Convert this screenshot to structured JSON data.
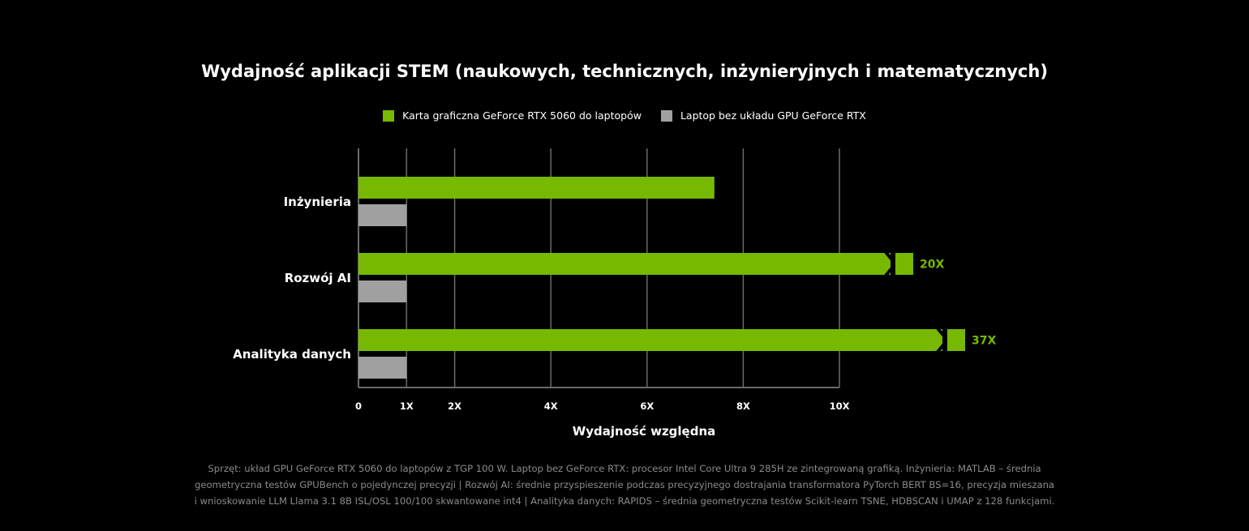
{
  "colors": {
    "primary": "#76b900",
    "secondary": "#a0a0a0",
    "grid": "#6a6a6a",
    "text": "#ffffff",
    "footnote": "#8a8a8a"
  },
  "chart_data": {
    "type": "bar",
    "orientation": "horizontal",
    "title": "Wydajność aplikacji STEM (naukowych, technicznych, inżynieryjnych i matematycznych)",
    "xlabel": "Wydajność względna",
    "xlim": [
      0,
      10
    ],
    "xticks": [
      {
        "value": 0,
        "label": "0"
      },
      {
        "value": 1,
        "label": "1X"
      },
      {
        "value": 2,
        "label": "2X"
      },
      {
        "value": 4,
        "label": "4X"
      },
      {
        "value": 6,
        "label": "6X"
      },
      {
        "value": 8,
        "label": "8X"
      },
      {
        "value": 10,
        "label": "10X"
      }
    ],
    "categories": [
      "Inżynieria",
      "Rozwój AI",
      "Analityka danych"
    ],
    "legend_position": "top-center",
    "series": [
      {
        "name": "Karta graficzna GeForce RTX 5060 do laptopów",
        "color": "#76b900",
        "values": [
          7.4,
          20,
          37
        ],
        "value_labels": [
          "",
          "20X",
          "37X"
        ]
      },
      {
        "name": "Laptop bez układu GPU GeForce RTX",
        "color": "#a0a0a0",
        "values": [
          1,
          1,
          1
        ]
      }
    ]
  },
  "footnote": [
    "Sprzęt: układ GPU GeForce RTX 5060 do laptopów z TGP 100 W. Laptop bez GeForce RTX: procesor Intel Core Ultra 9 285H ze zintegrowaną grafiką. Inżynieria: MATLAB – średnia",
    "geometryczna testów GPUBench o pojedynczej precyzji | Rozwój AI: średnie przyspieszenie podczas precyzyjnego dostrajania transformatora PyTorch BERT BS=16, precyzja mieszana",
    "i wnioskowanie LLM Llama 3.1 8B ISL/OSL 100/100 skwantowane int4 | Analityka danych: RAPIDS – średnia geometryczna testów Scikit-learn TSNE, HDBSCAN i UMAP z 128 funkcjami."
  ]
}
